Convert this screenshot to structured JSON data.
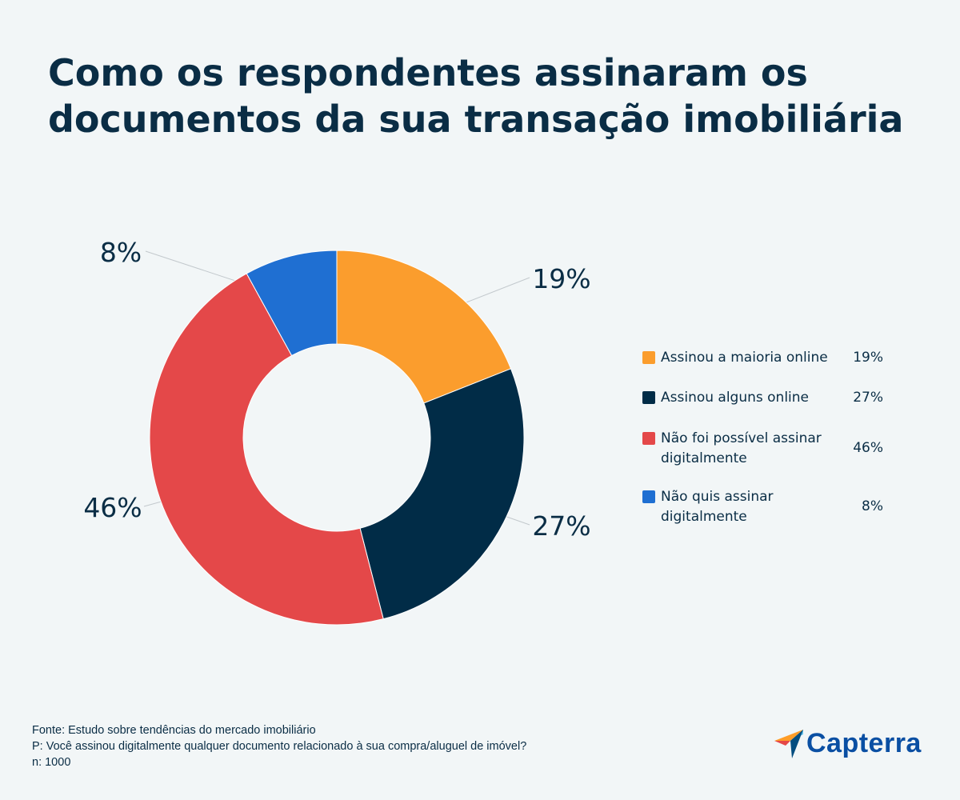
{
  "title": {
    "line1": "Como os respondentes assinaram os",
    "line2": "documentos da sua transação imobiliária"
  },
  "chart_data": {
    "type": "pie",
    "variant": "donut",
    "categories": [
      "Assinou a maioria online",
      "Assinou alguns online",
      "Não foi possível assinar digitalmente",
      "Não quis assinar digitalmente"
    ],
    "legend_lines": [
      [
        "Assinou a maioria online"
      ],
      [
        "Assinou alguns online"
      ],
      [
        "Não foi possível assinar",
        "digitalmente"
      ],
      [
        "Não quis assinar",
        "digitalmente"
      ]
    ],
    "values": [
      19,
      27,
      46,
      8
    ],
    "labels": [
      "19%",
      "27%",
      "46%",
      "8%"
    ],
    "colors": [
      "#fb9d2d",
      "#012c47",
      "#e44849",
      "#1f6fd2"
    ],
    "legend": "right"
  },
  "footer": {
    "source": "Fonte: Estudo sobre tendências do mercado imobiliário",
    "question": "P: Você assinou digitalmente qualquer documento relacionado à sua compra/aluguel de imóvel?",
    "n": "n: 1000"
  },
  "logo": {
    "text": "Capterra",
    "colors": [
      "#ff9d28",
      "#68c5ed",
      "#044d80",
      "#e54747"
    ]
  }
}
